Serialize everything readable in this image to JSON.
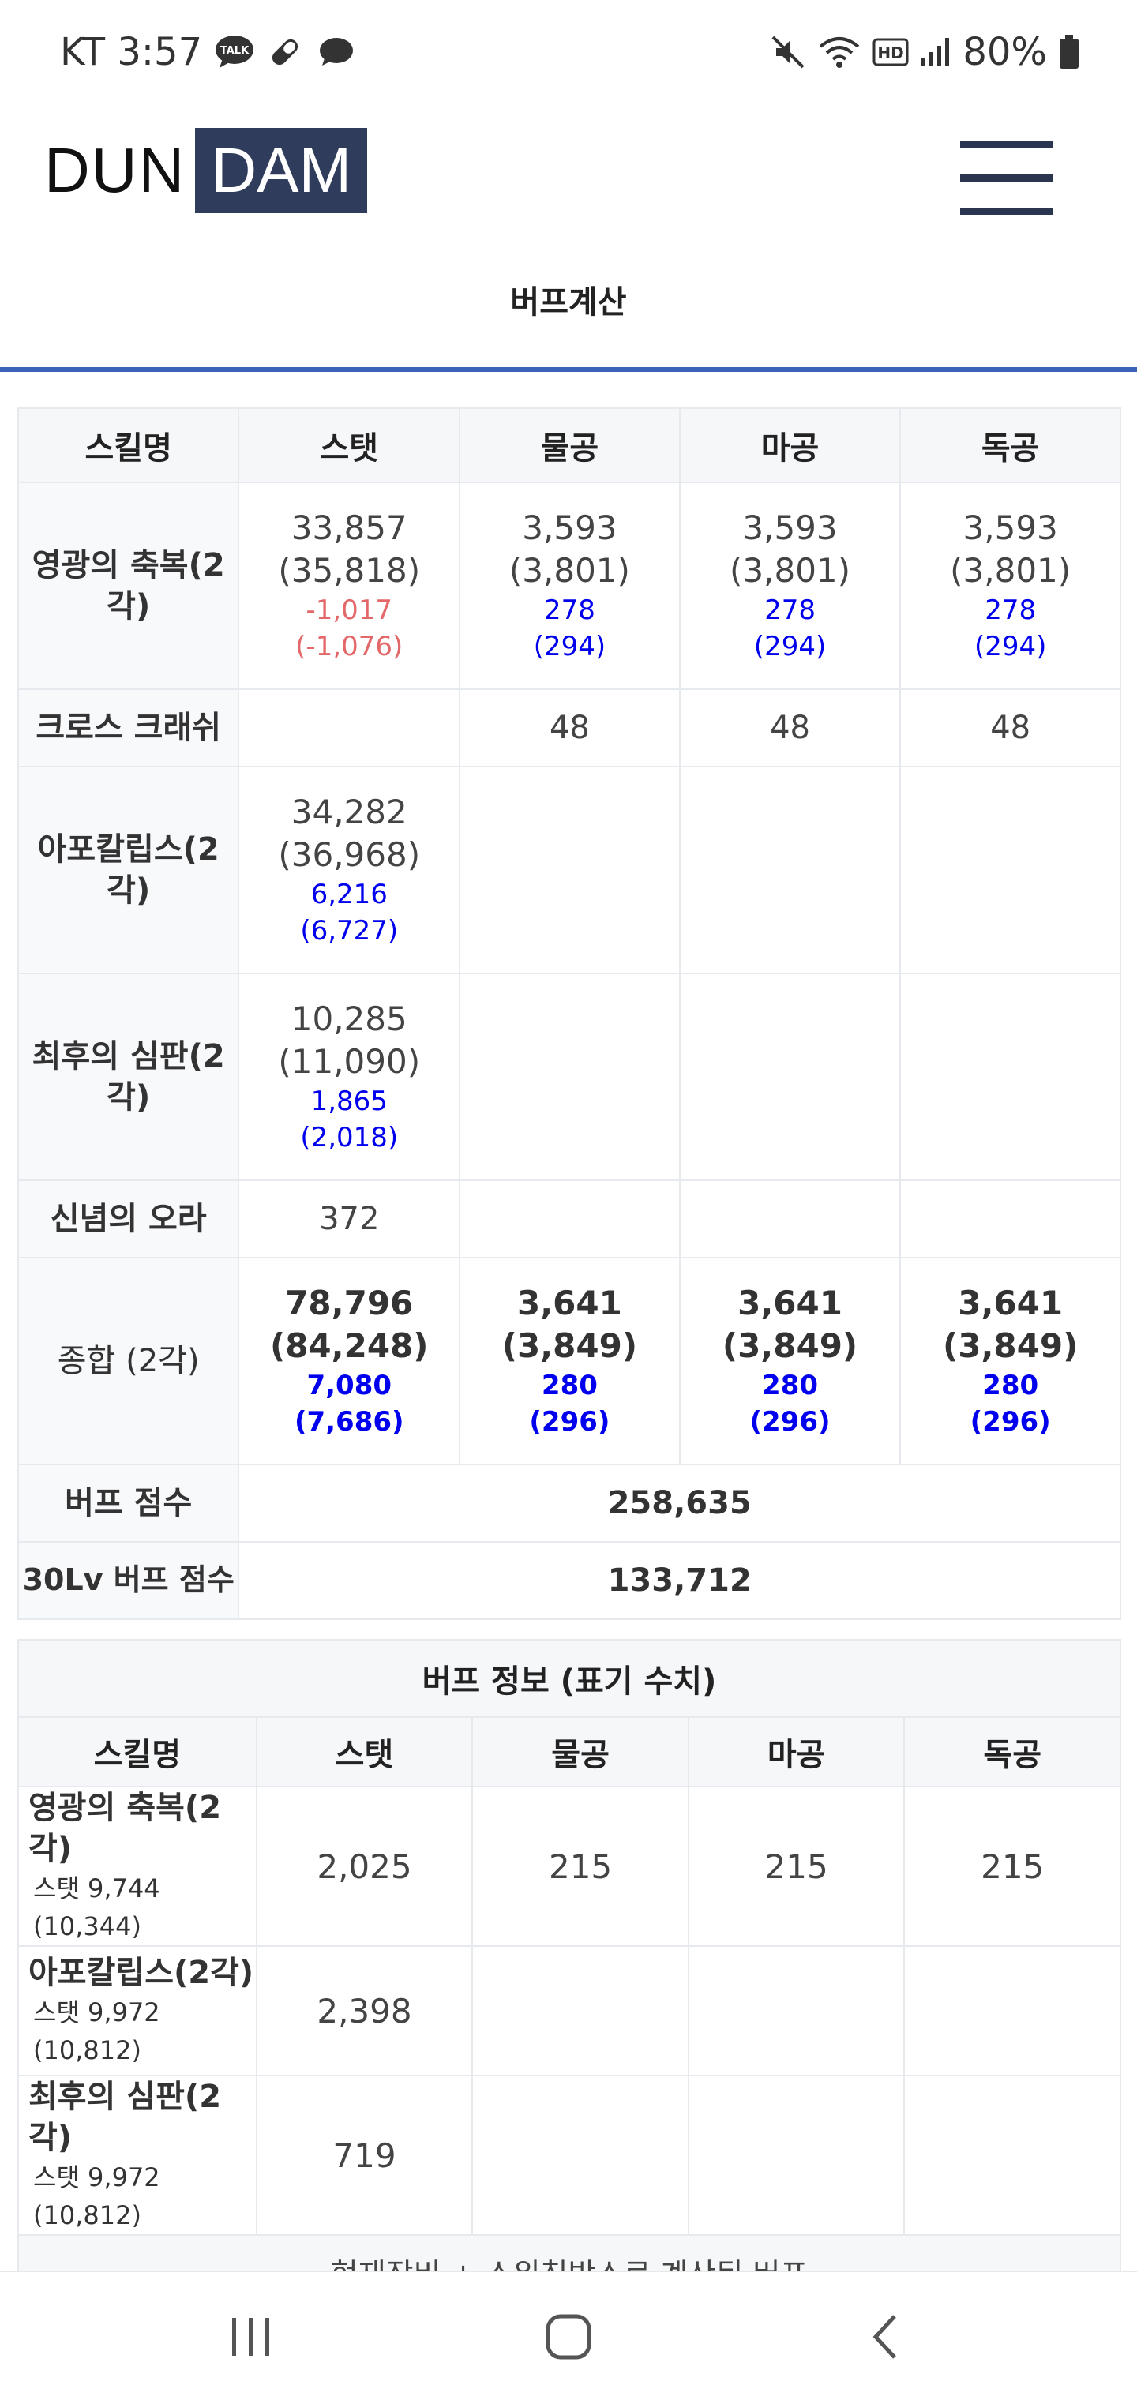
{
  "status_bar": {
    "time": "KT 3:57",
    "battery": "80%"
  },
  "header": {
    "logo_left": "DUN",
    "logo_right": "DAM",
    "page_title": "버프계산"
  },
  "buff_table": {
    "headers": [
      "스킬명",
      "스탯",
      "물공",
      "마공",
      "독공"
    ],
    "rows": [
      {
        "name": "영광의 축복(2각)",
        "stat": {
          "main": "33,857",
          "sub": "(35,818)",
          "d1": "-1,017",
          "d2": "(-1,076)"
        },
        "phys": {
          "main": "3,593",
          "sub": "(3,801)",
          "d1": "278",
          "d2": "(294)"
        },
        "mag": {
          "main": "3,593",
          "sub": "(3,801)",
          "d1": "278",
          "d2": "(294)"
        },
        "ind": {
          "main": "3,593",
          "sub": "(3,801)",
          "d1": "278",
          "d2": "(294)"
        }
      },
      {
        "name": "크로스 크래쉬",
        "phys": "48",
        "mag": "48",
        "ind": "48"
      },
      {
        "name": "아포칼립스(2각)",
        "stat": {
          "main": "34,282",
          "sub": "(36,968)",
          "d1": "6,216",
          "d2": "(6,727)"
        }
      },
      {
        "name": "최후의 심판(2각)",
        "stat": {
          "main": "10,285",
          "sub": "(11,090)",
          "d1": "1,865",
          "d2": "(2,018)"
        }
      },
      {
        "name": "신념의 오라",
        "stat": "372"
      },
      {
        "name": "종합 (2각)",
        "stat": {
          "main": "78,796",
          "sub": "(84,248)",
          "d1": "7,080",
          "d2": "(7,686)"
        },
        "phys": {
          "main": "3,641",
          "sub": "(3,849)",
          "d1": "280",
          "d2": "(296)"
        },
        "mag": {
          "main": "3,641",
          "sub": "(3,849)",
          "d1": "280",
          "d2": "(296)"
        },
        "ind": {
          "main": "3,641",
          "sub": "(3,849)",
          "d1": "280",
          "d2": "(296)"
        }
      }
    ],
    "buff_score_label": "버프 점수",
    "buff_score": "258,635",
    "lv30_score_label": "30Lv 버프 점수",
    "lv30_score": "133,712"
  },
  "info_table": {
    "caption": "버프 정보 (표기 수치)",
    "headers": [
      "스킬명",
      "스탯",
      "물공",
      "마공",
      "독공"
    ],
    "rows": [
      {
        "name": "영광의 축복(2각)",
        "sub": "스탯 9,744 (10,344)",
        "stat": "2,025",
        "phys": "215",
        "mag": "215",
        "ind": "215"
      },
      {
        "name": "아포칼립스(2각)",
        "sub": "스탯 9,972 (10,812)",
        "stat": "2,398"
      },
      {
        "name": "최후의 심판(2각)",
        "sub": "스탯 9,972 (10,812)",
        "stat": "719"
      }
    ],
    "footer": "현재장비 + 스위칭박스로 계산된 버프"
  },
  "colors": {
    "accent_line": "#3b63b8",
    "logo_bg": "#2f3c5c",
    "negative": "#e3686a",
    "blue_value": "#0000ee"
  },
  "icons": [
    "talk-icon",
    "pill-icon",
    "chat-bubble-icon",
    "mute-icon",
    "wifi-icon",
    "hd-icon",
    "signal-icon",
    "battery-icon",
    "menu-icon",
    "recent-apps-icon",
    "home-icon",
    "back-icon"
  ]
}
